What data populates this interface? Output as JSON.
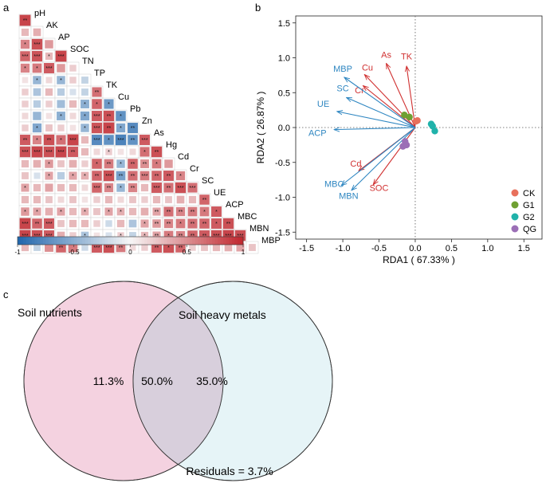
{
  "panels": {
    "a": "a",
    "b": "b",
    "c": "c"
  },
  "chart_data": [
    {
      "type": "heatmap",
      "panel": "a",
      "title": "",
      "variables": [
        "pH",
        "AK",
        "AP",
        "SOC",
        "TN",
        "TP",
        "TK",
        "Cu",
        "Pb",
        "Zn",
        "As",
        "Hg",
        "Cd",
        "Cr",
        "SC",
        "UE",
        "ACP",
        "MBC",
        "MBN",
        "MBP"
      ],
      "colorbar_ticks": [
        "-1",
        "-0.5",
        "0",
        "0.5",
        "1"
      ],
      "colorbar_range": [
        -1,
        1
      ],
      "colors": {
        "negative": "#2166ac",
        "zero": "#f7f7f7",
        "positive": "#c0262d"
      },
      "rows": [
        [
          0.85
        ],
        [
          0.3,
          0.35
        ],
        [
          0.55,
          0.8,
          0.45
        ],
        [
          0.7,
          0.78,
          0.3,
          0.85
        ],
        [
          0.55,
          0.6,
          0.75,
          0.45,
          0.2
        ],
        [
          0.1,
          -0.45,
          0.15,
          -0.45,
          0.2,
          -0.25
        ],
        [
          0.2,
          -0.35,
          0.3,
          -0.3,
          -0.15,
          -0.25,
          0.65
        ],
        [
          0.2,
          -0.3,
          0.2,
          -0.4,
          0.3,
          -0.5,
          0.7,
          -0.65
        ],
        [
          0.15,
          -0.45,
          0.1,
          -0.5,
          0.15,
          -0.55,
          0.75,
          0.8,
          -0.7
        ],
        [
          0.2,
          -0.55,
          0.25,
          0.2,
          0.1,
          -0.45,
          0.78,
          0.85,
          -0.55,
          -0.75
        ],
        [
          0.75,
          0.55,
          0.8,
          0.65,
          0.85,
          0.3,
          -0.75,
          -0.7,
          -0.8,
          -0.7,
          0.75
        ],
        [
          0.8,
          0.85,
          0.8,
          0.85,
          0.75,
          0.3,
          0.15,
          0.2,
          0.1,
          0.15,
          0.65,
          0.8
        ],
        [
          0.3,
          0.35,
          0.45,
          0.25,
          0.35,
          0.2,
          0.7,
          0.6,
          -0.45,
          0.7,
          0.5,
          0.6,
          0.45
        ],
        [
          0.25,
          -0.15,
          0.4,
          -0.3,
          0.4,
          0.35,
          0.7,
          0.8,
          -0.6,
          0.65,
          0.6,
          0.7,
          0.75,
          0.55
        ],
        [
          0.4,
          0.3,
          0.4,
          0.3,
          0.3,
          0.15,
          0.7,
          0.55,
          -0.45,
          0.55,
          0.3,
          0.75,
          0.65,
          0.8,
          0.65
        ],
        [
          0.3,
          0.3,
          0.25,
          0.15,
          0.25,
          0.1,
          0.2,
          0.3,
          0.15,
          0.25,
          0.2,
          0.3,
          0.25,
          0.35,
          0.3,
          0.7
        ],
        [
          0.45,
          0.4,
          0.35,
          0.4,
          0.3,
          0.35,
          0.25,
          0.4,
          0.35,
          0.3,
          0.35,
          0.4,
          0.65,
          0.55,
          0.6,
          0.6,
          0.75
        ],
        [
          0.85,
          0.7,
          0.75,
          0.25,
          0.3,
          0.3,
          0.2,
          -0.2,
          0.3,
          -0.35,
          0.4,
          0.45,
          0.55,
          0.6,
          0.65,
          0.7,
          0.75,
          0.8
        ],
        [
          0.85,
          0.8,
          0.75,
          0.35,
          0.2,
          -0.35,
          0.1,
          -0.15,
          0.2,
          -0.25,
          0.3,
          0.4,
          0.6,
          0.55,
          0.7,
          0.75,
          0.8,
          0.85,
          0.8
        ],
        [
          0.3,
          -0.25,
          0.5,
          0.7,
          0.6,
          -0.2,
          0.75,
          0.8,
          0.6,
          0.15,
          0.2,
          0.75,
          0.8,
          0.7,
          0.2,
          0.25,
          0.3,
          0.35,
          0.4,
          0.25
        ]
      ],
      "stars": [
        [
          "**"
        ],
        [
          "",
          ""
        ],
        [
          "*",
          "***",
          ""
        ],
        [
          "***",
          "***",
          "*",
          "***"
        ],
        [
          "*",
          "*",
          "***",
          "",
          ""
        ],
        [
          "",
          "*",
          "",
          "*",
          "",
          ""
        ],
        [
          "",
          "",
          "",
          "",
          "",
          "",
          "**"
        ],
        [
          "",
          "",
          "",
          "",
          "",
          "*",
          "*",
          "*"
        ],
        [
          "",
          "",
          "",
          "*",
          "",
          "*",
          "***",
          "**",
          "*"
        ],
        [
          "",
          "*",
          "",
          "",
          "",
          "*",
          "***",
          "**",
          "*",
          "**"
        ],
        [
          "**",
          "*",
          "**",
          "*",
          "***",
          "",
          "***",
          "*",
          "***",
          "**",
          "***"
        ],
        [
          "***",
          "***",
          "***",
          "***",
          "**",
          "",
          "",
          "*",
          "",
          "",
          "*",
          "**"
        ],
        [
          "",
          "",
          "*",
          "",
          "",
          "",
          "*",
          "**",
          "*",
          "**",
          "**",
          "*",
          ""
        ],
        [
          "",
          "",
          "*",
          "",
          "*",
          "*",
          "**",
          "***",
          "**",
          "**",
          "***",
          "**",
          "**",
          "*"
        ],
        [
          "*",
          "",
          "",
          "",
          "",
          "",
          "***",
          "**",
          "*",
          "**",
          "",
          "***",
          "**",
          "***",
          "***"
        ],
        [
          "",
          "",
          "",
          "",
          "",
          "",
          "",
          "",
          "",
          "",
          "",
          "",
          "",
          "",
          "",
          "**"
        ],
        [
          "*",
          "*",
          "",
          "*",
          "",
          "*",
          "",
          "*",
          "*",
          "",
          "",
          "**",
          "**",
          "**",
          "**",
          "*",
          "*"
        ],
        [
          "***",
          "**",
          "***",
          "",
          "",
          "",
          "",
          "",
          "",
          "",
          "*",
          "**",
          "**",
          "*",
          "**",
          "**",
          "*",
          "**"
        ],
        [
          "***",
          "***",
          "***",
          "",
          "",
          "*",
          "",
          "",
          "*",
          "",
          "*",
          "**",
          "*",
          "**",
          "**",
          "**",
          "***",
          "***",
          "***"
        ],
        [
          "",
          "",
          "",
          "**",
          "",
          "",
          "***",
          "***",
          "**",
          "",
          "",
          "**",
          "*",
          "**",
          "",
          "",
          "",
          "",
          "",
          ""
        ]
      ]
    },
    {
      "type": "scatter",
      "panel": "b",
      "subtype": "rda-biplot",
      "title": "",
      "xlabel": "RDA1 ( 67.33% )",
      "ylabel": "RDA2 ( 26.87% )",
      "xlim": [
        -1.65,
        1.75
      ],
      "ylim": [
        -1.6,
        1.6
      ],
      "xticks": [
        "-1.5",
        "-1.0",
        "-0.5",
        "0.0",
        "0.5",
        "1.0",
        "1.5"
      ],
      "yticks": [
        "-1.5",
        "-1.0",
        "-0.5",
        "0.0",
        "0.5",
        "1.0",
        "1.5"
      ],
      "xtick_values": [
        -1.5,
        -1.0,
        -0.5,
        0.0,
        0.5,
        1.0,
        1.5
      ],
      "ytick_values": [
        -1.5,
        -1.0,
        -0.5,
        0.0,
        0.5,
        1.0,
        1.5
      ],
      "arrows": [
        {
          "label": "As",
          "x": -0.4,
          "y": 0.92,
          "color": "#d03030",
          "lx": -0.4,
          "ly": 1.0
        },
        {
          "label": "TK",
          "x": -0.12,
          "y": 0.88,
          "color": "#d03030",
          "lx": -0.12,
          "ly": 0.98
        },
        {
          "label": "Cu",
          "x": -0.7,
          "y": 0.76,
          "color": "#d03030",
          "lx": -0.66,
          "ly": 0.82
        },
        {
          "label": "Cr",
          "x": -0.72,
          "y": 0.6,
          "color": "#d03030",
          "lx": -0.77,
          "ly": 0.49
        },
        {
          "label": "MBP",
          "x": -0.98,
          "y": 0.72,
          "color": "#2e86c1",
          "lx": -1.0,
          "ly": 0.8
        },
        {
          "label": "SC",
          "x": -0.95,
          "y": 0.43,
          "color": "#2e86c1",
          "lx": -1.0,
          "ly": 0.52
        },
        {
          "label": "UE",
          "x": -1.08,
          "y": 0.23,
          "color": "#2e86c1",
          "lx": -1.27,
          "ly": 0.3
        },
        {
          "label": "ACP",
          "x": -1.12,
          "y": -0.03,
          "color": "#2e86c1",
          "lx": -1.35,
          "ly": -0.12
        },
        {
          "label": "Cd",
          "x": -0.78,
          "y": -0.62,
          "color": "#d03030",
          "lx": -0.82,
          "ly": -0.56
        },
        {
          "label": "SOC",
          "x": -0.58,
          "y": -0.82,
          "color": "#d03030",
          "lx": -0.5,
          "ly": -0.91
        },
        {
          "label": "MBC",
          "x": -1.02,
          "y": -0.83,
          "color": "#2e86c1",
          "lx": -1.12,
          "ly": -0.85
        },
        {
          "label": "MBN",
          "x": -0.88,
          "y": -0.9,
          "color": "#2e86c1",
          "lx": -0.92,
          "ly": -1.02
        }
      ],
      "series": [
        {
          "name": "CK",
          "color": "#e8705c",
          "points": [
            [
              0.03,
              0.1
            ],
            [
              0.01,
              0.09
            ]
          ]
        },
        {
          "name": "G1",
          "color": "#6fa032",
          "points": [
            [
              -0.15,
              0.18
            ],
            [
              -0.08,
              0.15
            ]
          ]
        },
        {
          "name": "G2",
          "color": "#20b2aa",
          "points": [
            [
              0.24,
              0.02
            ],
            [
              0.27,
              -0.05
            ],
            [
              0.22,
              0.05
            ]
          ]
        },
        {
          "name": "QG",
          "color": "#9b6fb6",
          "points": [
            [
              -0.17,
              -0.27
            ],
            [
              -0.12,
              -0.25
            ],
            [
              -0.14,
              -0.2
            ]
          ]
        }
      ]
    },
    {
      "type": "venn",
      "panel": "c",
      "sets": [
        {
          "label": "Soil nutrients",
          "color": "#f4d2e0"
        },
        {
          "label": "Soil heavy metals",
          "color": "#d6ecf2"
        }
      ],
      "values": {
        "left_only": "11.3%",
        "overlap": "50.0%",
        "right_only": "35.0%"
      },
      "residuals": "Residuals = 3.7%"
    }
  ]
}
